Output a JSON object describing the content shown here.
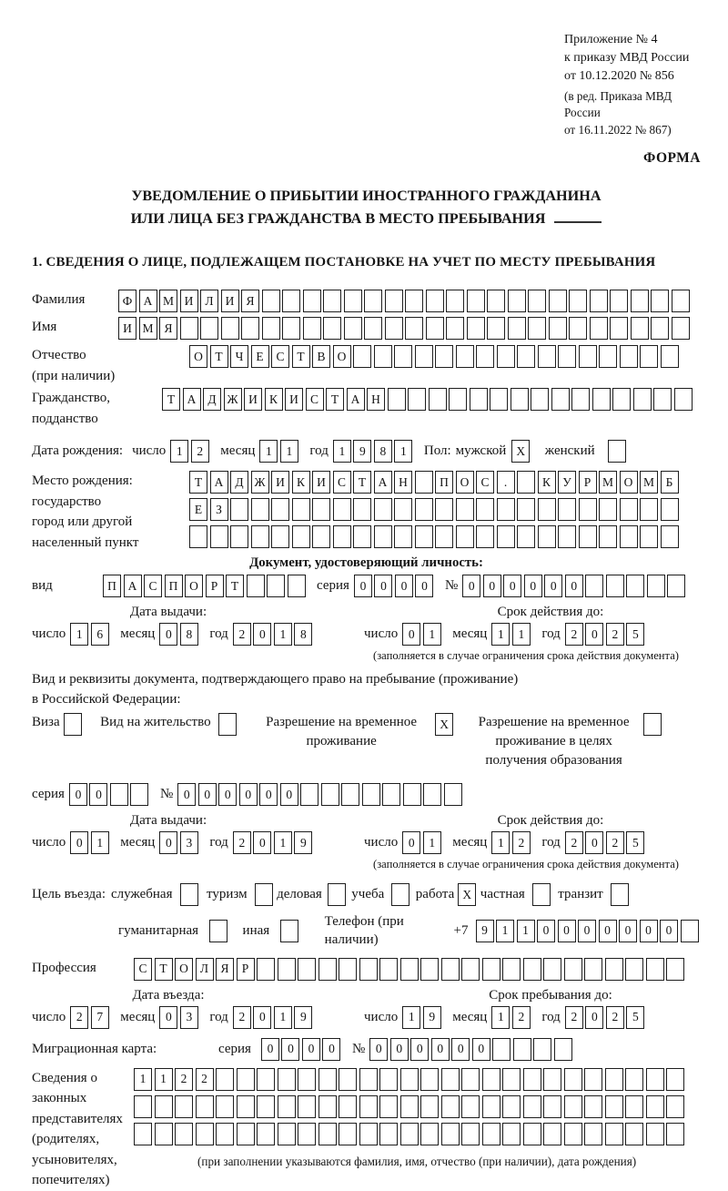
{
  "annex": {
    "line1": "Приложение № 4",
    "line2": "к приказу МВД России",
    "line3": "от 10.12.2020 № 856",
    "line4": "(в ред. Приказа МВД России",
    "line5": "от 16.11.2022 № 867)",
    "form_label": "ФОРМА"
  },
  "title": {
    "line1": "УВЕДОМЛЕНИЕ О ПРИБЫТИИ ИНОСТРАННОГО ГРАЖДАНИНА",
    "line2": "ИЛИ ЛИЦА БЕЗ ГРАЖДАНСТВА В МЕСТО ПРЕБЫВАНИЯ"
  },
  "section1": {
    "heading": "1. СВЕДЕНИЯ О ЛИЦЕ, ПОДЛЕЖАЩЕМ ПОСТАНОВКЕ НА УЧЕТ ПО МЕСТУ ПРЕБЫВАНИЯ"
  },
  "words": {
    "day": "число",
    "month": "месяц",
    "year": "год",
    "series": "серия",
    "number": "№",
    "type": "вид",
    "phone_prefix": "+7"
  },
  "surname": {
    "label": "Фамилия",
    "cells": {
      "n": 28,
      "text": "ФАМИЛИЯ"
    }
  },
  "firstname": {
    "label": "Имя",
    "cells": {
      "n": 28,
      "text": "ИМЯ"
    }
  },
  "patronymic": {
    "label1": "Отчество",
    "label2": "(при наличии)",
    "cells": {
      "n": 24,
      "text": "ОТЧЕСТВО"
    }
  },
  "citizenship": {
    "label1": "Гражданство,",
    "label2": "подданство",
    "cells": {
      "n": 26,
      "text": "ТАДЖИКИСТАН"
    }
  },
  "birthdate": {
    "label": "Дата рождения:",
    "day": {
      "n": 2,
      "text": "12"
    },
    "month": {
      "n": 2,
      "text": "11"
    },
    "year": {
      "n": 4,
      "text": "1981"
    }
  },
  "gender": {
    "label": "Пол:",
    "male_label": "мужской",
    "male_box": {
      "n": 1,
      "text": "X"
    },
    "female_label": "женский",
    "female_box": {
      "n": 1,
      "text": ""
    }
  },
  "birthplace": {
    "label1": "Место рождения:",
    "label2": "государство",
    "label3": "город или другой",
    "label4": "населенный пункт",
    "row1": {
      "n": 24,
      "text": "ТАДЖИКИСТАН ПОС. КУРМОМБ"
    },
    "row2": {
      "n": 24,
      "text": "ЕЗ"
    },
    "row3": {
      "n": 24,
      "text": ""
    }
  },
  "identity_doc": {
    "heading": "Документ, удостоверяющий личность:",
    "type_cells": {
      "n": 10,
      "text": "ПАСПОРТ"
    },
    "series_cells": {
      "n": 4,
      "text": "0000"
    },
    "number_cells": {
      "n": 11,
      "text": "000000"
    },
    "issue": {
      "label": "Дата выдачи:",
      "day": {
        "n": 2,
        "text": "16"
      },
      "month": {
        "n": 2,
        "text": "08"
      },
      "year": {
        "n": 4,
        "text": "2018"
      }
    },
    "valid": {
      "label": "Срок действия до:",
      "day": {
        "n": 2,
        "text": "01"
      },
      "month": {
        "n": 2,
        "text": "11"
      },
      "year": {
        "n": 4,
        "text": "2025"
      }
    },
    "note": "(заполняется в случае ограничения срока действия документа)"
  },
  "residence_doc": {
    "intro1": "Вид и реквизиты документа, подтверждающего право на пребывание (проживание)",
    "intro2": "в Российской Федерации:",
    "options": [
      {
        "label": "Виза",
        "box": {
          "n": 1,
          "text": ""
        }
      },
      {
        "label": "Вид на жительство",
        "box": {
          "n": 1,
          "text": ""
        }
      },
      {
        "label": "Разрешение на временное проживание",
        "box": {
          "n": 1,
          "text": "X"
        }
      },
      {
        "label": "Разрешение на временное проживание в целях получения образования",
        "box": {
          "n": 1,
          "text": ""
        }
      }
    ],
    "series_cells": {
      "n": 4,
      "text": "00"
    },
    "number_cells": {
      "n": 14,
      "text": "000000"
    },
    "issue": {
      "label": "Дата выдачи:",
      "day": {
        "n": 2,
        "text": "01"
      },
      "month": {
        "n": 2,
        "text": "03"
      },
      "year": {
        "n": 4,
        "text": "2019"
      }
    },
    "valid": {
      "label": "Срок действия до:",
      "day": {
        "n": 2,
        "text": "01"
      },
      "month": {
        "n": 2,
        "text": "12"
      },
      "year": {
        "n": 4,
        "text": "2025"
      }
    },
    "note": "(заполняется в случае ограничения срока действия документа)"
  },
  "purpose": {
    "label": "Цель въезда:",
    "options": [
      {
        "label": "служебная",
        "box": {
          "n": 1,
          "text": ""
        }
      },
      {
        "label": "туризм",
        "box": {
          "n": 1,
          "text": ""
        }
      },
      {
        "label": "деловая",
        "box": {
          "n": 1,
          "text": ""
        }
      },
      {
        "label": "учеба",
        "box": {
          "n": 1,
          "text": ""
        }
      },
      {
        "label": "работа",
        "box": {
          "n": 1,
          "text": "X"
        }
      },
      {
        "label": "частная",
        "box": {
          "n": 1,
          "text": ""
        }
      },
      {
        "label": "транзит",
        "box": {
          "n": 1,
          "text": ""
        }
      }
    ],
    "options2": [
      {
        "label": "гуманитарная",
        "box": {
          "n": 1,
          "text": ""
        }
      },
      {
        "label": "иная",
        "box": {
          "n": 1,
          "text": ""
        }
      }
    ],
    "phone_label": "Телефон (при наличии)",
    "phone_cells": {
      "n": 11,
      "text": "9110000000"
    }
  },
  "profession": {
    "label": "Профессия",
    "cells": {
      "n": 27,
      "text": "СТОЛЯР"
    }
  },
  "entry_dates": {
    "issue": {
      "label": "Дата въезда:",
      "day": {
        "n": 2,
        "text": "27"
      },
      "month": {
        "n": 2,
        "text": "03"
      },
      "year": {
        "n": 4,
        "text": "2019"
      }
    },
    "valid": {
      "label": "Срок пребывания до:",
      "day": {
        "n": 2,
        "text": "19"
      },
      "month": {
        "n": 2,
        "text": "12"
      },
      "year": {
        "n": 4,
        "text": "2025"
      }
    }
  },
  "migration_card": {
    "label": "Миграционная карта:",
    "series_cells": {
      "n": 4,
      "text": "0000"
    },
    "number_cells": {
      "n": 10,
      "text": "000000"
    }
  },
  "representatives": {
    "label1": "Сведения о",
    "label2": "законных",
    "label3": "представителях",
    "label4": "(родителях,",
    "label5": "усыновителях,",
    "label6": "попечителях)",
    "row1": {
      "n": 27,
      "text": "1122"
    },
    "row2": {
      "n": 27,
      "text": ""
    },
    "row3": {
      "n": 27,
      "text": ""
    },
    "note": "(при заполнении указываются фамилия, имя, отчество (при наличии), дата рождения)"
  }
}
